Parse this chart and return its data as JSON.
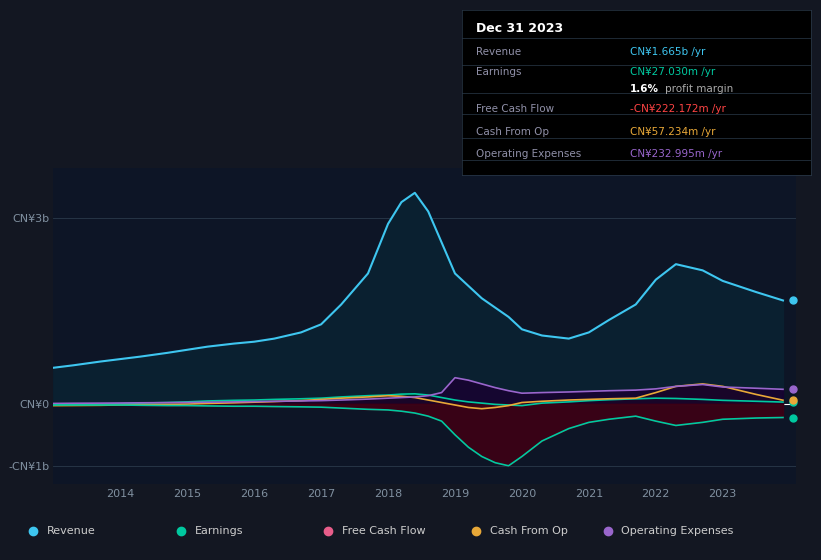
{
  "background_color": "#131722",
  "plot_bg_color": "#131722",
  "chart_bg_color": "#0d1526",
  "ytick_labels": [
    "-CN¥1b",
    "CN¥0",
    "CN¥3b"
  ],
  "yticks": [
    -1000,
    0,
    3000
  ],
  "ylim": [
    -1300,
    3800
  ],
  "xtick_labels": [
    "2014",
    "2015",
    "2016",
    "2017",
    "2018",
    "2019",
    "2020",
    "2021",
    "2022",
    "2023"
  ],
  "xtick_positions": [
    2014,
    2015,
    2016,
    2017,
    2018,
    2019,
    2020,
    2021,
    2022,
    2023
  ],
  "legend": [
    {
      "label": "Revenue",
      "color": "#3ec6f0"
    },
    {
      "label": "Earnings",
      "color": "#00c9a0"
    },
    {
      "label": "Free Cash Flow",
      "color": "#e85d8a"
    },
    {
      "label": "Cash From Op",
      "color": "#e8a838"
    },
    {
      "label": "Operating Expenses",
      "color": "#9966cc"
    }
  ],
  "info_box": {
    "date": "Dec 31 2023",
    "rows": [
      {
        "label": "Revenue",
        "value": "CN¥1.665b /yr",
        "value_color": "#3ec6f0"
      },
      {
        "label": "Earnings",
        "value": "CN¥27.030m /yr",
        "value_color": "#00c9a0"
      },
      {
        "label": "",
        "value": "1.6% profit margin",
        "value_color": "#ffffff"
      },
      {
        "label": "Free Cash Flow",
        "value": "-CN¥222.172m /yr",
        "value_color": "#ff4444"
      },
      {
        "label": "Cash From Op",
        "value": "CN¥57.234m /yr",
        "value_color": "#e8a838"
      },
      {
        "label": "Operating Expenses",
        "value": "CN¥232.995m /yr",
        "value_color": "#9966cc"
      }
    ]
  },
  "series": {
    "years": [
      2013.0,
      2013.3,
      2013.7,
      2014.0,
      2014.3,
      2014.7,
      2015.0,
      2015.3,
      2015.7,
      2016.0,
      2016.3,
      2016.7,
      2017.0,
      2017.3,
      2017.7,
      2018.0,
      2018.2,
      2018.4,
      2018.6,
      2018.8,
      2019.0,
      2019.2,
      2019.4,
      2019.6,
      2019.8,
      2020.0,
      2020.3,
      2020.7,
      2021.0,
      2021.3,
      2021.7,
      2022.0,
      2022.3,
      2022.7,
      2023.0,
      2023.5,
      2023.9
    ],
    "revenue": [
      580,
      620,
      680,
      720,
      760,
      820,
      870,
      920,
      970,
      1000,
      1050,
      1150,
      1280,
      1600,
      2100,
      2900,
      3250,
      3400,
      3100,
      2600,
      2100,
      1900,
      1700,
      1550,
      1400,
      1200,
      1100,
      1050,
      1150,
      1350,
      1600,
      2000,
      2250,
      2150,
      1980,
      1800,
      1665
    ],
    "earnings": [
      -15,
      -10,
      -5,
      0,
      10,
      20,
      30,
      45,
      55,
      60,
      70,
      80,
      90,
      110,
      130,
      140,
      155,
      160,
      140,
      100,
      60,
      30,
      10,
      -10,
      -20,
      -30,
      10,
      30,
      50,
      65,
      80,
      90,
      85,
      70,
      55,
      40,
      27
    ],
    "free_cash_flow": [
      -20,
      -20,
      -20,
      -20,
      -25,
      -30,
      -30,
      -35,
      -40,
      -40,
      -45,
      -50,
      -55,
      -70,
      -90,
      -100,
      -120,
      -150,
      -200,
      -280,
      -500,
      -700,
      -850,
      -950,
      -1000,
      -850,
      -600,
      -400,
      -300,
      -250,
      -200,
      -280,
      -350,
      -300,
      -250,
      -230,
      -222
    ],
    "cash_from_op": [
      -30,
      -28,
      -25,
      -20,
      -15,
      -10,
      -5,
      5,
      15,
      25,
      35,
      50,
      70,
      90,
      110,
      130,
      120,
      100,
      60,
      20,
      -20,
      -60,
      -80,
      -60,
      -30,
      20,
      40,
      60,
      70,
      80,
      90,
      180,
      280,
      320,
      280,
      150,
      57
    ],
    "op_expenses": [
      5,
      8,
      10,
      12,
      15,
      18,
      20,
      25,
      30,
      35,
      40,
      45,
      50,
      60,
      75,
      90,
      100,
      110,
      130,
      180,
      420,
      380,
      320,
      260,
      210,
      170,
      180,
      190,
      200,
      210,
      220,
      240,
      280,
      310,
      270,
      250,
      233
    ]
  },
  "series_colors": {
    "revenue_line": "#3ec6f0",
    "revenue_fill": "#0a2030",
    "earnings_line": "#00c9a0",
    "earnings_fill": "#002820",
    "fcf_line": "#00c9a0",
    "fcf_fill": "#3d0015",
    "cfo_line": "#e8a838",
    "cfo_fill": "#2a1800",
    "opex_line": "#9966cc",
    "opex_fill": "#180030"
  },
  "dot_y_values": [
    1665,
    27,
    -222,
    57,
    233
  ],
  "dot_colors": [
    "#3ec6f0",
    "#00c9a0",
    "#00c9a0",
    "#e8a838",
    "#9966cc"
  ]
}
